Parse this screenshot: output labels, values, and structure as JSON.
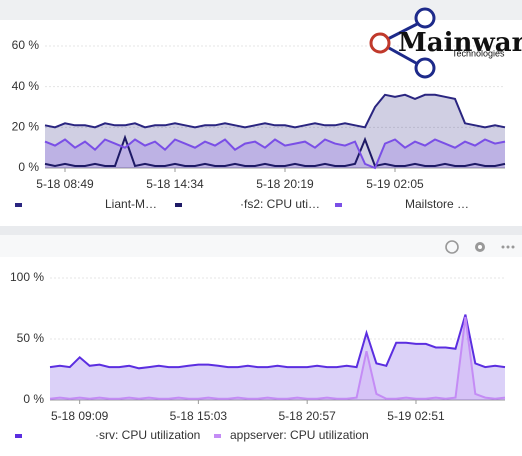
{
  "logo": {
    "name": "Mainware",
    "tagline": "Technologies"
  },
  "chart_data": [
    {
      "type": "line",
      "categories": [
        null,
        null,
        "5-18 08:49",
        null,
        null,
        null,
        null,
        null,
        null,
        null,
        null,
        null,
        null,
        "5-18 14:34",
        null,
        null,
        null,
        null,
        null,
        null,
        null,
        null,
        null,
        null,
        "5-18 20:19",
        null,
        null,
        null,
        null,
        null,
        null,
        null,
        null,
        null,
        null,
        "5-19 02:05",
        null,
        null,
        null,
        null,
        null,
        null,
        null,
        null,
        null,
        null,
        null
      ],
      "ylim": [
        0,
        60
      ],
      "yticks": [
        {
          "value": 0,
          "label": "0 %"
        },
        {
          "value": 20,
          "label": "20 %"
        },
        {
          "value": 40,
          "label": "40 %"
        },
        {
          "value": 60,
          "label": "60 %"
        }
      ],
      "grid": true,
      "series": [
        {
          "name": "Liant-M…",
          "color": "#2a2580",
          "fill": true,
          "values": [
            21,
            20,
            22,
            21,
            21,
            20,
            22,
            21,
            21,
            22,
            20,
            21,
            21,
            22,
            21,
            20,
            21,
            21,
            22,
            21,
            20,
            21,
            22,
            21,
            21,
            20,
            21,
            22,
            21,
            21,
            22,
            21,
            20,
            30,
            36,
            35,
            36,
            34,
            36,
            36,
            35,
            34,
            22,
            21,
            20,
            21,
            20
          ]
        },
        {
          "name": "·fs2: CPU uti…",
          "color": "#1e1a66",
          "fill": false,
          "values": [
            2,
            1,
            2,
            1,
            1,
            2,
            1,
            1,
            15,
            1,
            2,
            1,
            1,
            2,
            1,
            1,
            2,
            1,
            1,
            2,
            1,
            1,
            2,
            1,
            1,
            2,
            1,
            1,
            2,
            1,
            1,
            2,
            14,
            1,
            2,
            1,
            1,
            2,
            1,
            1,
            2,
            1,
            1,
            2,
            1,
            1,
            2
          ]
        },
        {
          "name": "Mailstore …",
          "color": "#7a4fe6",
          "fill": true,
          "values": [
            13,
            11,
            14,
            10,
            13,
            9,
            14,
            12,
            10,
            14,
            11,
            13,
            9,
            14,
            12,
            10,
            13,
            11,
            14,
            9,
            12,
            13,
            10,
            14,
            11,
            12,
            13,
            10,
            14,
            12,
            11,
            13,
            2,
            0,
            12,
            14,
            10,
            13,
            11,
            14,
            12,
            10,
            13,
            11,
            14,
            12,
            13
          ]
        }
      ]
    },
    {
      "type": "line",
      "categories": [
        null,
        null,
        null,
        "5-18 09:09",
        null,
        null,
        null,
        null,
        null,
        null,
        null,
        null,
        null,
        null,
        null,
        "5-18 15:03",
        null,
        null,
        null,
        null,
        null,
        null,
        null,
        null,
        null,
        null,
        "5-18 20:57",
        null,
        null,
        null,
        null,
        null,
        null,
        null,
        null,
        null,
        null,
        "5-19 02:51",
        null,
        null,
        null,
        null,
        null,
        null,
        null,
        null,
        null
      ],
      "ylim": [
        0,
        100
      ],
      "yticks": [
        {
          "value": 0,
          "label": "0 %"
        },
        {
          "value": 50,
          "label": "50 %"
        },
        {
          "value": 100,
          "label": "100 %"
        }
      ],
      "grid": true,
      "series": [
        {
          "name": "·srv: CPU utilization",
          "color": "#5b2ee0",
          "fill": true,
          "values": [
            27,
            28,
            27,
            35,
            28,
            29,
            27,
            27,
            28,
            26,
            27,
            28,
            27,
            27,
            28,
            29,
            29,
            28,
            27,
            27,
            28,
            27,
            27,
            28,
            27,
            27,
            27,
            28,
            27,
            27,
            28,
            27,
            55,
            30,
            28,
            47,
            47,
            46,
            46,
            43,
            43,
            42,
            70,
            30,
            27,
            28,
            27
          ]
        },
        {
          "name": "appserver: CPU utilization",
          "color": "#c48cf5",
          "fill": true,
          "values": [
            1,
            2,
            1,
            2,
            1,
            2,
            1,
            1,
            2,
            1,
            2,
            1,
            1,
            2,
            1,
            1,
            2,
            1,
            1,
            2,
            1,
            1,
            2,
            1,
            1,
            2,
            1,
            1,
            2,
            1,
            1,
            2,
            40,
            5,
            1,
            1,
            2,
            1,
            1,
            2,
            1,
            2,
            68,
            5,
            2,
            1,
            2
          ]
        }
      ]
    }
  ]
}
